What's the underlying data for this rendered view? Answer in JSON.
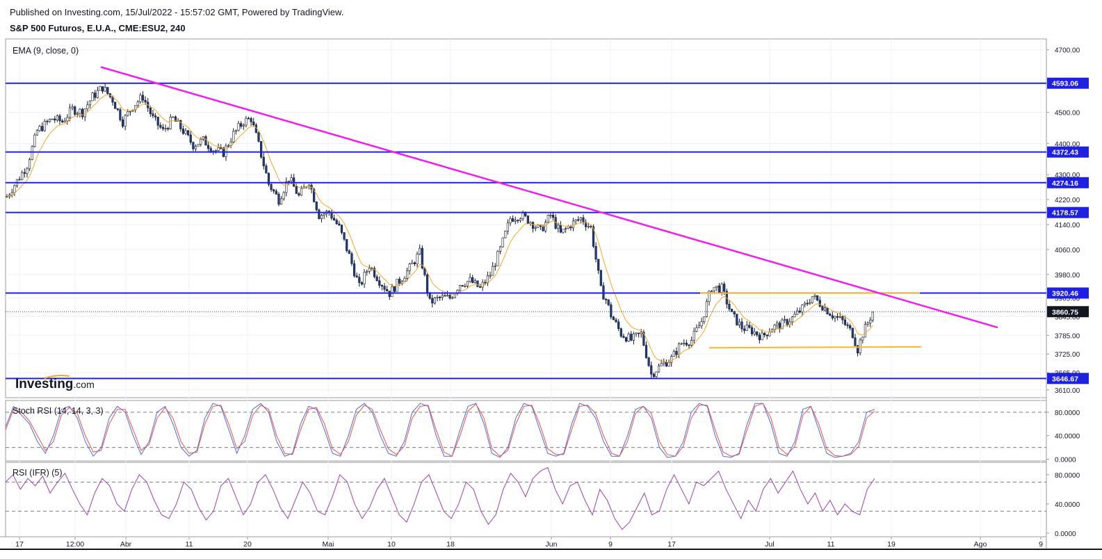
{
  "header": {
    "published": "Published on Investing.com, 15/Jul/2022 - 15:57:02 GMT, Powered by TradingView.",
    "instrument": "S&P 500 Futuros, E.U.A., CME:ESU2, 240"
  },
  "watermark": {
    "brand": "Investing",
    "suffix": ".com"
  },
  "colors": {
    "support": "#1e22e0",
    "trendline": "#f21cf0",
    "channel": "#f5b731",
    "stoch_k": "#4a6be0",
    "stoch_d": "#e8504a",
    "rsi": "#9c3fb0",
    "ema": "#f5a623"
  },
  "chart_data": [
    {
      "type": "candlestick",
      "indicator_label": "EMA (9, close, 0)",
      "y_ticks": [
        "4700.00",
        "4500.00",
        "4400.00",
        "4300.00",
        "4220.00",
        "4140.00",
        "4060.00",
        "3980.00",
        "3905.00",
        "3845.00",
        "3785.00",
        "3725.00",
        "3665.00",
        "3610.00"
      ],
      "x_ticks": [
        "17",
        "12:00",
        "Abr",
        "11",
        "20",
        "Mai",
        "10",
        "18",
        "Jun",
        "9",
        "17",
        "Jul",
        "11",
        "19",
        "Ago",
        "9"
      ],
      "horizontal_levels": [
        "4593.06",
        "4372.43",
        "4274.16",
        "4178.57",
        "3920.46",
        "3646.67"
      ],
      "last_price": "3860.75",
      "ylim": [
        3585,
        4735
      ],
      "close_path": [
        [
          0,
          4230
        ],
        [
          8,
          4330
        ],
        [
          12,
          4440
        ],
        [
          18,
          4480
        ],
        [
          22,
          4470
        ],
        [
          26,
          4510
        ],
        [
          30,
          4500
        ],
        [
          34,
          4550
        ],
        [
          38,
          4580
        ],
        [
          42,
          4540
        ],
        [
          46,
          4470
        ],
        [
          50,
          4520
        ],
        [
          54,
          4550
        ],
        [
          58,
          4480
        ],
        [
          62,
          4440
        ],
        [
          66,
          4480
        ],
        [
          70,
          4440
        ],
        [
          74,
          4395
        ],
        [
          78,
          4410
        ],
        [
          82,
          4380
        ],
        [
          86,
          4370
        ],
        [
          90,
          4430
        ],
        [
          94,
          4470
        ],
        [
          97,
          4480
        ],
        [
          100,
          4395
        ],
        [
          104,
          4270
        ],
        [
          108,
          4220
        ],
        [
          112,
          4290
        ],
        [
          116,
          4230
        ],
        [
          120,
          4280
        ],
        [
          124,
          4170
        ],
        [
          128,
          4180
        ],
        [
          132,
          4130
        ],
        [
          136,
          4040
        ],
        [
          140,
          3940
        ],
        [
          144,
          4010
        ],
        [
          148,
          3960
        ],
        [
          152,
          3920
        ],
        [
          156,
          3960
        ],
        [
          160,
          4000
        ],
        [
          164,
          4050
        ],
        [
          168,
          3890
        ],
        [
          172,
          3905
        ],
        [
          176,
          3905
        ],
        [
          180,
          3950
        ],
        [
          184,
          3960
        ],
        [
          188,
          3935
        ],
        [
          192,
          3980
        ],
        [
          196,
          4060
        ],
        [
          200,
          4160
        ],
        [
          204,
          4170
        ],
        [
          208,
          4150
        ],
        [
          212,
          4120
        ],
        [
          216,
          4170
        ],
        [
          220,
          4110
        ],
        [
          224,
          4140
        ],
        [
          228,
          4160
        ],
        [
          232,
          4130
        ],
        [
          234,
          4030
        ],
        [
          236,
          3930
        ],
        [
          238,
          3900
        ],
        [
          240,
          3850
        ],
        [
          244,
          3790
        ],
        [
          248,
          3770
        ],
        [
          252,
          3790
        ],
        [
          256,
          3660
        ],
        [
          260,
          3690
        ],
        [
          264,
          3710
        ],
        [
          268,
          3760
        ],
        [
          272,
          3770
        ],
        [
          276,
          3830
        ],
        [
          280,
          3940
        ],
        [
          284,
          3935
        ],
        [
          288,
          3850
        ],
        [
          292,
          3810
        ],
        [
          296,
          3800
        ],
        [
          300,
          3780
        ],
        [
          304,
          3810
        ],
        [
          308,
          3820
        ],
        [
          312,
          3840
        ],
        [
          316,
          3870
        ],
        [
          320,
          3910
        ],
        [
          324,
          3880
        ],
        [
          328,
          3850
        ],
        [
          332,
          3830
        ],
        [
          336,
          3790
        ],
        [
          338,
          3740
        ],
        [
          340,
          3790
        ],
        [
          344,
          3860
        ]
      ]
    },
    {
      "type": "line",
      "indicator_label": "Stoch RSI (14, 14, 3, 3)",
      "y_ticks": [
        "80.0000",
        "40.0000",
        "0.0000"
      ],
      "ylim": [
        -3,
        100
      ],
      "reference_lines": [
        80,
        20
      ],
      "series": [
        {
          "values": [
            55,
            90,
            75,
            60,
            30,
            10,
            40,
            85,
            90,
            70,
            30,
            5,
            20,
            70,
            90,
            80,
            40,
            8,
            30,
            80,
            90,
            60,
            20,
            5,
            15,
            70,
            95,
            90,
            50,
            10,
            40,
            85,
            95,
            80,
            30,
            5,
            10,
            60,
            90,
            85,
            50,
            10,
            5,
            40,
            85,
            95,
            80,
            40,
            10,
            5,
            30,
            80,
            95,
            90,
            40,
            5,
            5,
            50,
            90,
            95,
            60,
            10,
            3,
            20,
            70,
            95,
            90,
            50,
            10,
            5,
            10,
            60,
            95,
            90,
            70,
            30,
            5,
            5,
            40,
            85,
            90,
            70,
            20,
            3,
            5,
            30,
            80,
            95,
            90,
            40,
            5,
            3,
            10,
            60,
            95,
            95,
            60,
            10,
            5,
            30,
            85,
            90,
            50,
            10,
            3,
            5,
            10,
            30,
            80,
            85
          ]
        },
        {
          "values": [
            50,
            85,
            80,
            65,
            40,
            15,
            30,
            75,
            88,
            78,
            40,
            12,
            15,
            60,
            85,
            85,
            50,
            15,
            25,
            70,
            88,
            70,
            30,
            10,
            12,
            60,
            90,
            92,
            60,
            18,
            30,
            75,
            92,
            85,
            40,
            10,
            8,
            50,
            85,
            88,
            60,
            18,
            8,
            30,
            75,
            92,
            85,
            50,
            18,
            8,
            22,
            70,
            90,
            92,
            50,
            12,
            5,
            40,
            82,
            94,
            70,
            18,
            5,
            15,
            60,
            90,
            92,
            60,
            18,
            8,
            8,
            50,
            90,
            92,
            78,
            40,
            10,
            5,
            30,
            78,
            90,
            78,
            30,
            8,
            5,
            22,
            70,
            92,
            92,
            50,
            12,
            5,
            8,
            50,
            90,
            95,
            70,
            20,
            8,
            22,
            75,
            90,
            60,
            18,
            6,
            5,
            8,
            22,
            70,
            82
          ]
        }
      ]
    },
    {
      "type": "line",
      "indicator_label": "RSI (IFR) (5)",
      "y_ticks": [
        "80.0000",
        "40.0000",
        "0.0000"
      ],
      "ylim": [
        -5,
        97
      ],
      "reference_lines": [
        70,
        30
      ],
      "series": [
        {
          "values": [
            70,
            80,
            60,
            75,
            65,
            78,
            55,
            70,
            82,
            60,
            40,
            25,
            55,
            75,
            65,
            40,
            30,
            60,
            80,
            70,
            45,
            25,
            20,
            40,
            70,
            60,
            35,
            18,
            30,
            65,
            75,
            50,
            25,
            40,
            70,
            80,
            60,
            35,
            20,
            45,
            70,
            55,
            30,
            25,
            50,
            80,
            70,
            40,
            20,
            35,
            60,
            75,
            50,
            25,
            15,
            40,
            70,
            80,
            55,
            30,
            20,
            40,
            70,
            60,
            30,
            12,
            25,
            60,
            82,
            70,
            50,
            75,
            85,
            90,
            60,
            40,
            65,
            70,
            45,
            25,
            60,
            45,
            20,
            5,
            15,
            35,
            55,
            25,
            30,
            60,
            80,
            60,
            40,
            70,
            65,
            75,
            85,
            60,
            40,
            20,
            45,
            30,
            60,
            75,
            55,
            70,
            85,
            60,
            40,
            55,
            30,
            45,
            25,
            40,
            30,
            25,
            60,
            75
          ]
        }
      ]
    }
  ]
}
